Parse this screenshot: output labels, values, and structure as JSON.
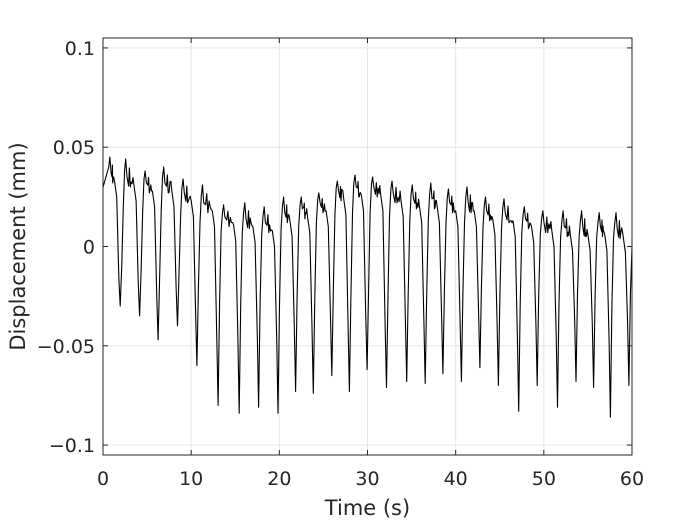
{
  "chart_data": {
    "type": "line",
    "title": "",
    "xlabel": "Time (s)",
    "ylabel": "Displacement (mm)",
    "xlim": [
      0,
      60
    ],
    "ylim": [
      -0.105,
      0.105
    ],
    "grid": true,
    "legend": "none",
    "line_color": "#000000",
    "grid_color": "#e6e6e6",
    "axis_color": "#262626",
    "xticks": [
      0,
      10,
      20,
      30,
      40,
      50,
      60
    ],
    "xtick_labels": [
      "0",
      "10",
      "20",
      "30",
      "40",
      "50",
      "60"
    ],
    "yticks": [
      -0.1,
      -0.05,
      0,
      0.05,
      0.1
    ],
    "ytick_labels": [
      "−0.1",
      "−0.05",
      "0",
      "0.05",
      "0.1"
    ],
    "cycles": {
      "t": [
        0.2,
        2.0,
        4.2,
        6.3,
        8.5,
        10.7,
        13.1,
        15.5,
        17.7,
        19.9,
        21.9,
        23.9,
        26.0,
        28.0,
        30.0,
        32.2,
        34.5,
        36.6,
        38.6,
        40.7,
        42.8,
        44.9,
        47.2,
        49.3,
        51.6,
        53.7,
        55.7,
        57.6,
        59.7
      ],
      "peak": [
        0.045,
        0.044,
        0.038,
        0.04,
        0.034,
        0.031,
        0.021,
        0.022,
        0.02,
        0.025,
        0.025,
        0.027,
        0.033,
        0.036,
        0.035,
        0.033,
        0.031,
        0.032,
        0.029,
        0.03,
        0.025,
        0.024,
        0.02,
        0.018,
        0.018,
        0.018,
        0.017,
        0.017,
        0.003
      ],
      "base": [
        0.035,
        0.033,
        0.03,
        0.03,
        0.025,
        0.02,
        0.013,
        0.012,
        0.01,
        0.015,
        0.017,
        0.02,
        0.026,
        0.028,
        0.028,
        0.025,
        0.022,
        0.022,
        0.02,
        0.02,
        0.016,
        0.015,
        0.012,
        0.01,
        0.008,
        0.008,
        0.008,
        0.007,
        0.0
      ],
      "trough": [
        null,
        -0.03,
        -0.035,
        -0.047,
        -0.04,
        -0.06,
        -0.08,
        -0.084,
        -0.081,
        -0.084,
        -0.073,
        -0.074,
        -0.065,
        -0.073,
        -0.062,
        -0.071,
        -0.068,
        -0.069,
        -0.064,
        -0.068,
        -0.061,
        -0.07,
        -0.083,
        -0.07,
        -0.081,
        -0.068,
        -0.071,
        -0.086,
        -0.07
      ]
    }
  }
}
